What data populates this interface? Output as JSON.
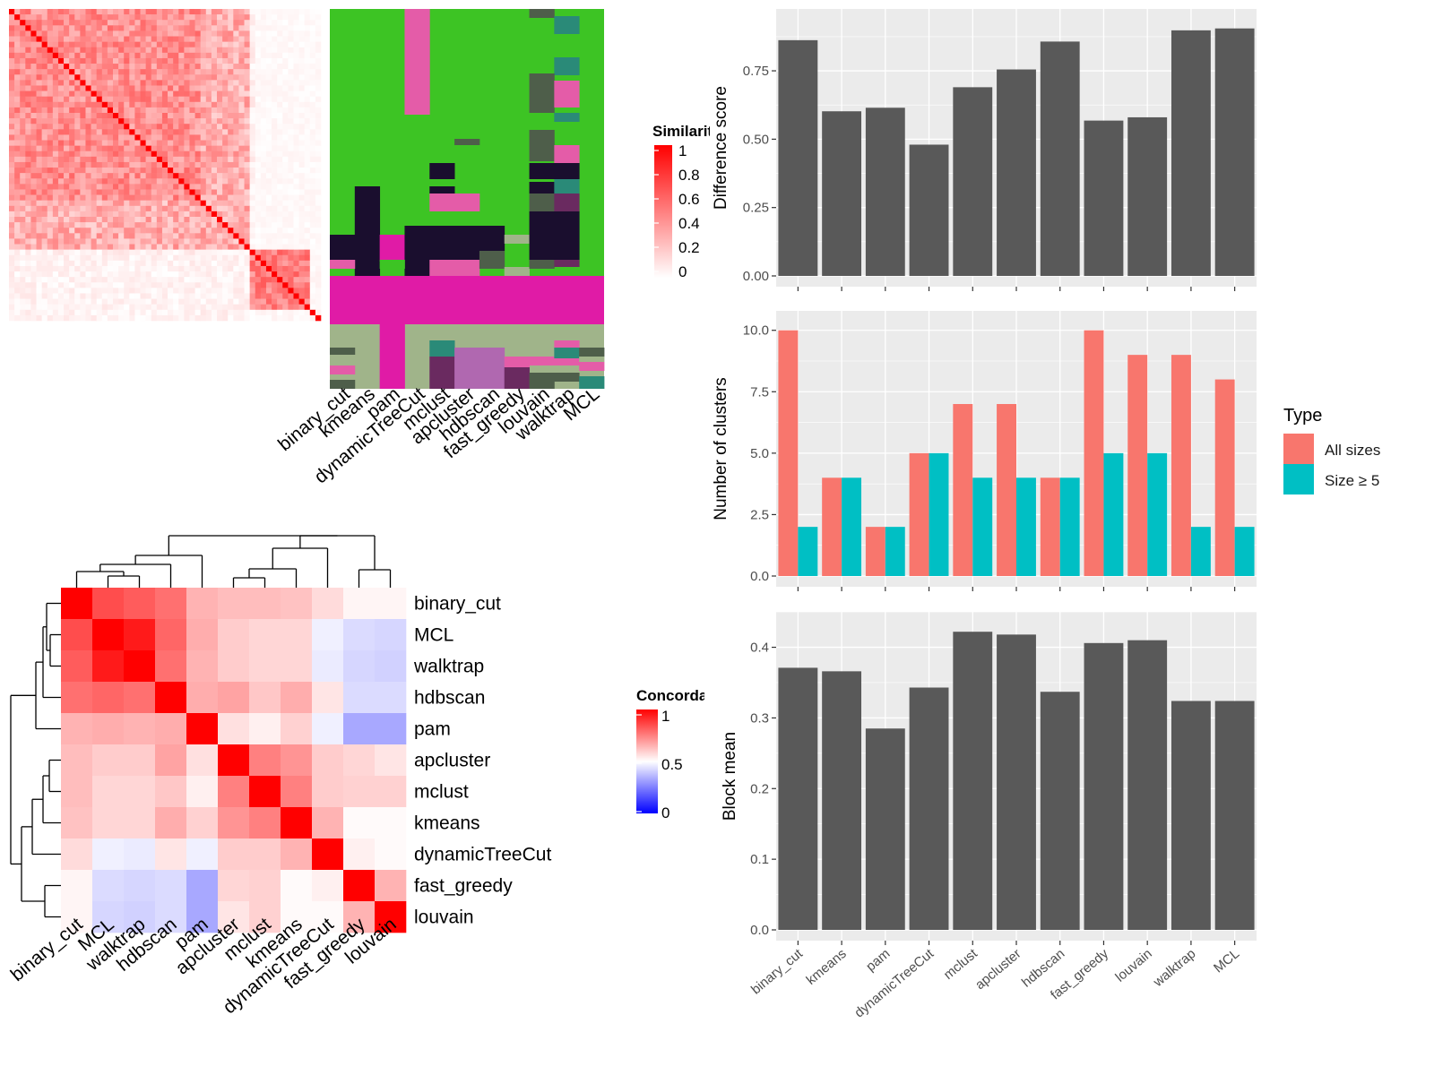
{
  "methods_order": [
    "binary_cut",
    "kmeans",
    "pam",
    "dynamicTreeCut",
    "mclust",
    "apcluster",
    "hdbscan",
    "fast_greedy",
    "louvain",
    "walktrap",
    "MCL"
  ],
  "colors": {
    "heat_low": "#FFFFFF",
    "heat_high": "#FF0000",
    "conc_low": "#0000FF",
    "conc_mid": "#FFFFFF",
    "conc_high": "#FF0000",
    "bar_grey": "#595959",
    "all_sizes": "#F8766D",
    "size_ge5": "#00BFC4",
    "panel_bg": "#EBEBEB",
    "grid": "#FFFFFF",
    "cluster_palette": [
      "#3DC424",
      "#1A0E2E",
      "#E01BA6",
      "#A0B48A",
      "#E45CA8",
      "#4E5E4A",
      "#2A8A78",
      "#B068B0",
      "#6A2A60"
    ]
  },
  "similarity_heatmap": {
    "legend_title": "Similarity",
    "legend_ticks": [
      "1",
      "0.8",
      "0.6",
      "0.4",
      "0.2",
      "0"
    ],
    "column_labels": [
      "binary_cut",
      "kmeans",
      "pam",
      "dynamicTreeCut",
      "mclust",
      "apcluster",
      "hdbscan",
      "fast_greedy",
      "louvain",
      "walktrap",
      "MCL"
    ]
  },
  "concordance_heatmap": {
    "legend_title": "Concordance",
    "legend_ticks": [
      "1",
      "0.5",
      "0"
    ],
    "row_labels": [
      "binary_cut",
      "MCL",
      "walktrap",
      "hdbscan",
      "pam",
      "apcluster",
      "mclust",
      "kmeans",
      "dynamicTreeCut",
      "fast_greedy",
      "louvain"
    ],
    "col_labels": [
      "binary_cut",
      "MCL",
      "walktrap",
      "hdbscan",
      "pam",
      "apcluster",
      "mclust",
      "kmeans",
      "dynamicTreeCut",
      "fast_greedy",
      "louvain"
    ],
    "values": [
      [
        1.0,
        0.85,
        0.82,
        0.78,
        0.65,
        0.63,
        0.63,
        0.62,
        0.57,
        0.52,
        0.52
      ],
      [
        0.85,
        1.0,
        0.95,
        0.8,
        0.66,
        0.6,
        0.58,
        0.58,
        0.47,
        0.43,
        0.42
      ],
      [
        0.82,
        0.95,
        1.0,
        0.78,
        0.65,
        0.6,
        0.58,
        0.58,
        0.46,
        0.42,
        0.41
      ],
      [
        0.78,
        0.8,
        0.78,
        1.0,
        0.66,
        0.68,
        0.61,
        0.66,
        0.55,
        0.43,
        0.43
      ],
      [
        0.65,
        0.66,
        0.65,
        0.66,
        1.0,
        0.56,
        0.53,
        0.59,
        0.47,
        0.33,
        0.33
      ],
      [
        0.63,
        0.6,
        0.6,
        0.68,
        0.56,
        1.0,
        0.75,
        0.71,
        0.6,
        0.58,
        0.55
      ],
      [
        0.63,
        0.58,
        0.58,
        0.61,
        0.53,
        0.75,
        1.0,
        0.75,
        0.6,
        0.59,
        0.59
      ],
      [
        0.62,
        0.58,
        0.58,
        0.66,
        0.59,
        0.71,
        0.75,
        1.0,
        0.65,
        0.51,
        0.51
      ],
      [
        0.57,
        0.47,
        0.46,
        0.55,
        0.47,
        0.6,
        0.6,
        0.65,
        1.0,
        0.53,
        0.51
      ],
      [
        0.52,
        0.43,
        0.42,
        0.43,
        0.33,
        0.58,
        0.59,
        0.51,
        0.53,
        1.0,
        0.65
      ],
      [
        0.52,
        0.42,
        0.41,
        0.43,
        0.33,
        0.55,
        0.59,
        0.51,
        0.51,
        0.65,
        1.0
      ]
    ]
  },
  "chart_data": [
    {
      "type": "bar",
      "categories": [
        "binary_cut",
        "kmeans",
        "pam",
        "dynamicTreeCut",
        "mclust",
        "apcluster",
        "hdbscan",
        "fast_greedy",
        "louvain",
        "walktrap",
        "MCL"
      ],
      "values": [
        0.862,
        0.602,
        0.615,
        0.48,
        0.69,
        0.755,
        0.857,
        0.568,
        0.58,
        0.898,
        0.905
      ],
      "ylabel": "Difference score",
      "ylim": [
        0,
        0.95
      ],
      "yticks": [
        "0.00",
        "0.25",
        "0.50",
        "0.75"
      ],
      "grid": true
    },
    {
      "type": "bar",
      "categories": [
        "binary_cut",
        "kmeans",
        "pam",
        "dynamicTreeCut",
        "mclust",
        "apcluster",
        "hdbscan",
        "fast_greedy",
        "louvain",
        "walktrap",
        "MCL"
      ],
      "series": [
        {
          "name": "All sizes",
          "values": [
            10,
            4,
            2,
            5,
            7,
            7,
            4,
            10,
            9,
            9,
            8
          ]
        },
        {
          "name": "Size ≥ 5",
          "values": [
            2,
            4,
            2,
            5,
            4,
            4,
            4,
            5,
            5,
            2,
            2
          ]
        }
      ],
      "ylabel": "Number of clusters",
      "ylim": [
        0,
        10.5
      ],
      "yticks": [
        "0.0",
        "2.5",
        "5.0",
        "7.5",
        "10.0"
      ],
      "legend_title": "Type",
      "legend": "right",
      "grid": true
    },
    {
      "type": "bar",
      "categories": [
        "binary_cut",
        "kmeans",
        "pam",
        "dynamicTreeCut",
        "mclust",
        "apcluster",
        "hdbscan",
        "fast_greedy",
        "louvain",
        "walktrap",
        "MCL"
      ],
      "values": [
        0.371,
        0.366,
        0.285,
        0.343,
        0.422,
        0.418,
        0.337,
        0.406,
        0.41,
        0.324,
        0.324
      ],
      "ylabel": "Block mean",
      "ylim": [
        0,
        0.44
      ],
      "yticks": [
        "0.0",
        "0.1",
        "0.2",
        "0.3",
        "0.4"
      ],
      "xtick_labels": [
        "binary_cut",
        "kmeans",
        "pam",
        "dynamicTreeCut",
        "mclust",
        "apcluster",
        "hdbscan",
        "fast_greedy",
        "louvain",
        "walktrap",
        "MCL"
      ],
      "grid": true
    }
  ]
}
